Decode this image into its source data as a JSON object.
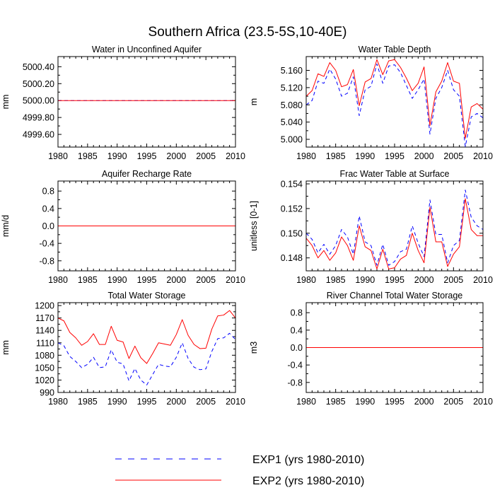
{
  "figure": {
    "title": "Southern Africa (23.5-5S,10-40E)",
    "legend": [
      {
        "label": "EXP1 (yrs 1980-2010)",
        "color": "#0000ff",
        "dash": "dashed"
      },
      {
        "label": "EXP2 (yrs 1980-2010)",
        "color": "#ff0000",
        "dash": "solid"
      }
    ]
  },
  "chart_data": [
    {
      "type": "line",
      "title": "Water in Unconfined Aquifer",
      "ylabel": "mm",
      "xlim": [
        1980,
        2010
      ],
      "ylim": [
        4999.45,
        5000.52
      ],
      "xticks": [
        1980,
        1985,
        1990,
        1995,
        2000,
        2005,
        2010
      ],
      "yticks": [
        4999.6,
        4999.8,
        5000.0,
        5000.2,
        5000.4
      ],
      "ytick_labels": [
        "4999.60",
        "4999.80",
        "5000.00",
        "5000.20",
        "5000.40"
      ],
      "x": [
        1980,
        1981,
        1982,
        1983,
        1984,
        1985,
        1986,
        1987,
        1988,
        1989,
        1990,
        1991,
        1992,
        1993,
        1994,
        1995,
        1996,
        1997,
        1998,
        1999,
        2000,
        2001,
        2002,
        2003,
        2004,
        2005,
        2006,
        2007,
        2008,
        2009,
        2010
      ],
      "series": [
        {
          "name": "EXP1",
          "values": [
            5000,
            5000,
            5000,
            5000,
            5000,
            5000,
            5000,
            5000,
            5000,
            5000,
            5000,
            5000,
            5000,
            5000,
            5000,
            5000,
            5000,
            5000,
            5000,
            5000,
            5000,
            5000,
            5000,
            5000,
            5000,
            5000,
            5000,
            5000,
            5000,
            5000,
            5000
          ]
        },
        {
          "name": "EXP2",
          "values": [
            5000,
            5000,
            5000,
            5000,
            5000,
            5000,
            5000,
            5000,
            5000,
            5000,
            5000,
            5000,
            5000,
            5000,
            5000,
            5000,
            5000,
            5000,
            5000,
            5000,
            5000,
            5000,
            5000,
            5000,
            5000,
            5000,
            5000,
            5000,
            5000,
            5000,
            5000
          ]
        }
      ]
    },
    {
      "type": "line",
      "title": "Water Table Depth",
      "ylabel": "m",
      "xlim": [
        1980,
        2010
      ],
      "ylim": [
        4.982,
        5.192
      ],
      "xticks": [
        1980,
        1985,
        1990,
        1995,
        2000,
        2005,
        2010
      ],
      "yticks": [
        5.0,
        5.04,
        5.08,
        5.12,
        5.16
      ],
      "ytick_labels": [
        "5.000",
        "5.040",
        "5.080",
        "5.120",
        "5.160"
      ],
      "x": [
        1980,
        1981,
        1982,
        1983,
        1984,
        1985,
        1986,
        1987,
        1988,
        1989,
        1990,
        1991,
        1992,
        1993,
        1994,
        1995,
        1996,
        1997,
        1998,
        1999,
        2000,
        2001,
        2002,
        2003,
        2004,
        2005,
        2006,
        2007,
        2008,
        2009,
        2010
      ],
      "series": [
        {
          "name": "EXP1",
          "values": [
            5.08,
            5.09,
            5.135,
            5.13,
            5.163,
            5.14,
            5.1,
            5.107,
            5.145,
            5.055,
            5.115,
            5.123,
            5.175,
            5.13,
            5.17,
            5.173,
            5.155,
            5.125,
            5.095,
            5.115,
            5.14,
            5.012,
            5.095,
            5.12,
            5.16,
            5.115,
            5.1,
            4.983,
            5.052,
            5.06,
            5.05
          ]
        },
        {
          "name": "EXP2",
          "values": [
            5.1,
            5.113,
            5.152,
            5.146,
            5.178,
            5.16,
            5.122,
            5.127,
            5.162,
            5.078,
            5.133,
            5.141,
            5.185,
            5.15,
            5.182,
            5.185,
            5.167,
            5.142,
            5.113,
            5.13,
            5.168,
            5.032,
            5.11,
            5.135,
            5.178,
            5.135,
            5.13,
            5.002,
            5.075,
            5.083,
            5.07
          ]
        }
      ]
    },
    {
      "type": "line",
      "title": "Aquifer Recharge Rate",
      "ylabel": "mm/d",
      "xlim": [
        1980,
        2010
      ],
      "ylim": [
        -1.03,
        1.03
      ],
      "xticks": [
        1980,
        1985,
        1990,
        1995,
        2000,
        2005,
        2010
      ],
      "yticks": [
        -0.8,
        -0.4,
        0.0,
        0.4,
        0.8
      ],
      "ytick_labels": [
        "-0.8",
        "-0.4",
        "0.0",
        "0.4",
        "0.8"
      ],
      "x": [
        1980,
        1981,
        1982,
        1983,
        1984,
        1985,
        1986,
        1987,
        1988,
        1989,
        1990,
        1991,
        1992,
        1993,
        1994,
        1995,
        1996,
        1997,
        1998,
        1999,
        2000,
        2001,
        2002,
        2003,
        2004,
        2005,
        2006,
        2007,
        2008,
        2009,
        2010
      ],
      "series": [
        {
          "name": "EXP1",
          "values": [
            0,
            0,
            0,
            0,
            0,
            0,
            0,
            0,
            0,
            0,
            0,
            0,
            0,
            0,
            0,
            0,
            0,
            0,
            0,
            0,
            0,
            0,
            0,
            0,
            0,
            0,
            0,
            0,
            0,
            0,
            0
          ]
        },
        {
          "name": "EXP2",
          "values": [
            0,
            0,
            0,
            0,
            0,
            0,
            0,
            0,
            0,
            0,
            0,
            0,
            0,
            0,
            0,
            0,
            0,
            0,
            0,
            0,
            0,
            0,
            0,
            0,
            0,
            0,
            0,
            0,
            0,
            0,
            0
          ]
        }
      ]
    },
    {
      "type": "line",
      "title": "Frac Water Table at Surface",
      "ylabel": "unitless [0-1]",
      "xlim": [
        1980,
        2010
      ],
      "ylim": [
        0.14695,
        0.15423
      ],
      "xticks": [
        1980,
        1985,
        1990,
        1995,
        2000,
        2005,
        2010
      ],
      "yticks": [
        0.148,
        0.15,
        0.152,
        0.154
      ],
      "ytick_labels": [
        "0.148",
        "0.150",
        "0.152",
        "0.154"
      ],
      "x": [
        1980,
        1981,
        1982,
        1983,
        1984,
        1985,
        1986,
        1987,
        1988,
        1989,
        1990,
        1991,
        1992,
        1993,
        1994,
        1995,
        1996,
        1997,
        1998,
        1999,
        2000,
        2001,
        2002,
        2003,
        2004,
        2005,
        2006,
        2007,
        2008,
        2009,
        2010
      ],
      "series": [
        {
          "name": "EXP1",
          "values": [
            0.15,
            0.1495,
            0.1484,
            0.1491,
            0.1483,
            0.149,
            0.1503,
            0.1497,
            0.1483,
            0.1514,
            0.1493,
            0.149,
            0.1474,
            0.1491,
            0.1474,
            0.1477,
            0.1485,
            0.1487,
            0.1506,
            0.1492,
            0.1481,
            0.1527,
            0.1499,
            0.1499,
            0.1476,
            0.149,
            0.1494,
            0.1535,
            0.1513,
            0.1506,
            0.1503
          ]
        },
        {
          "name": "EXP2",
          "values": [
            0.1496,
            0.149,
            0.148,
            0.1486,
            0.1478,
            0.1484,
            0.1497,
            0.149,
            0.1478,
            0.1506,
            0.1489,
            0.1486,
            0.1471,
            0.1487,
            0.1471,
            0.1472,
            0.1479,
            0.1482,
            0.15,
            0.1486,
            0.1476,
            0.1521,
            0.1493,
            0.1493,
            0.1473,
            0.1483,
            0.1489,
            0.1528,
            0.1503,
            0.1498,
            0.1498
          ]
        }
      ]
    },
    {
      "type": "line",
      "title": "Total Water Storage",
      "ylabel": "mm",
      "xlim": [
        1980,
        2010
      ],
      "ylim": [
        990,
        1207
      ],
      "xticks": [
        1980,
        1985,
        1990,
        1995,
        2000,
        2005,
        2010
      ],
      "yticks": [
        990,
        1020,
        1050,
        1080,
        1110,
        1140,
        1170,
        1200
      ],
      "ytick_labels": [
        "990",
        "1020",
        "1050",
        "1080",
        "1110",
        "1140",
        "1170",
        "1200"
      ],
      "x": [
        1980,
        1981,
        1982,
        1983,
        1984,
        1985,
        1986,
        1987,
        1988,
        1989,
        1990,
        1991,
        1992,
        1993,
        1994,
        1995,
        1996,
        1997,
        1998,
        1999,
        2000,
        2001,
        2002,
        2003,
        2004,
        2005,
        2006,
        2007,
        2008,
        2009,
        2010
      ],
      "series": [
        {
          "name": "EXP1",
          "values": [
            1110,
            1103,
            1077,
            1065,
            1050,
            1058,
            1075,
            1050,
            1052,
            1093,
            1063,
            1059,
            1018,
            1048,
            1020,
            1008,
            1033,
            1058,
            1054,
            1052,
            1075,
            1110,
            1072,
            1051,
            1045,
            1047,
            1089,
            1120,
            1122,
            1133,
            1118
          ]
        },
        {
          "name": "EXP2",
          "values": [
            1170,
            1163,
            1135,
            1122,
            1104,
            1113,
            1132,
            1106,
            1106,
            1150,
            1116,
            1112,
            1072,
            1102,
            1074,
            1060,
            1084,
            1110,
            1107,
            1104,
            1130,
            1166,
            1128,
            1106,
            1096,
            1097,
            1143,
            1175,
            1177,
            1188,
            1170
          ]
        }
      ]
    },
    {
      "type": "line",
      "title": "River Channel Total Water Storage",
      "ylabel": "m3",
      "xlim": [
        1980,
        2010
      ],
      "ylim": [
        -1.03,
        1.03
      ],
      "xticks": [
        1980,
        1985,
        1990,
        1995,
        2000,
        2005,
        2010
      ],
      "yticks": [
        -0.8,
        -0.4,
        0.0,
        0.4,
        0.8
      ],
      "ytick_labels": [
        "-0.8",
        "-0.4",
        "0.0",
        "0.4",
        "0.8"
      ],
      "x": [
        1980,
        1981,
        1982,
        1983,
        1984,
        1985,
        1986,
        1987,
        1988,
        1989,
        1990,
        1991,
        1992,
        1993,
        1994,
        1995,
        1996,
        1997,
        1998,
        1999,
        2000,
        2001,
        2002,
        2003,
        2004,
        2005,
        2006,
        2007,
        2008,
        2009,
        2010
      ],
      "series": [
        {
          "name": "EXP1",
          "values": [
            0,
            0,
            0,
            0,
            0,
            0,
            0,
            0,
            0,
            0,
            0,
            0,
            0,
            0,
            0,
            0,
            0,
            0,
            0,
            0,
            0,
            0,
            0,
            0,
            0,
            0,
            0,
            0,
            0,
            0,
            0
          ]
        },
        {
          "name": "EXP2",
          "values": [
            0,
            0,
            0,
            0,
            0,
            0,
            0,
            0,
            0,
            0,
            0,
            0,
            0,
            0,
            0,
            0,
            0,
            0,
            0,
            0,
            0,
            0,
            0,
            0,
            0,
            0,
            0,
            0,
            0,
            0,
            0
          ]
        }
      ]
    }
  ]
}
